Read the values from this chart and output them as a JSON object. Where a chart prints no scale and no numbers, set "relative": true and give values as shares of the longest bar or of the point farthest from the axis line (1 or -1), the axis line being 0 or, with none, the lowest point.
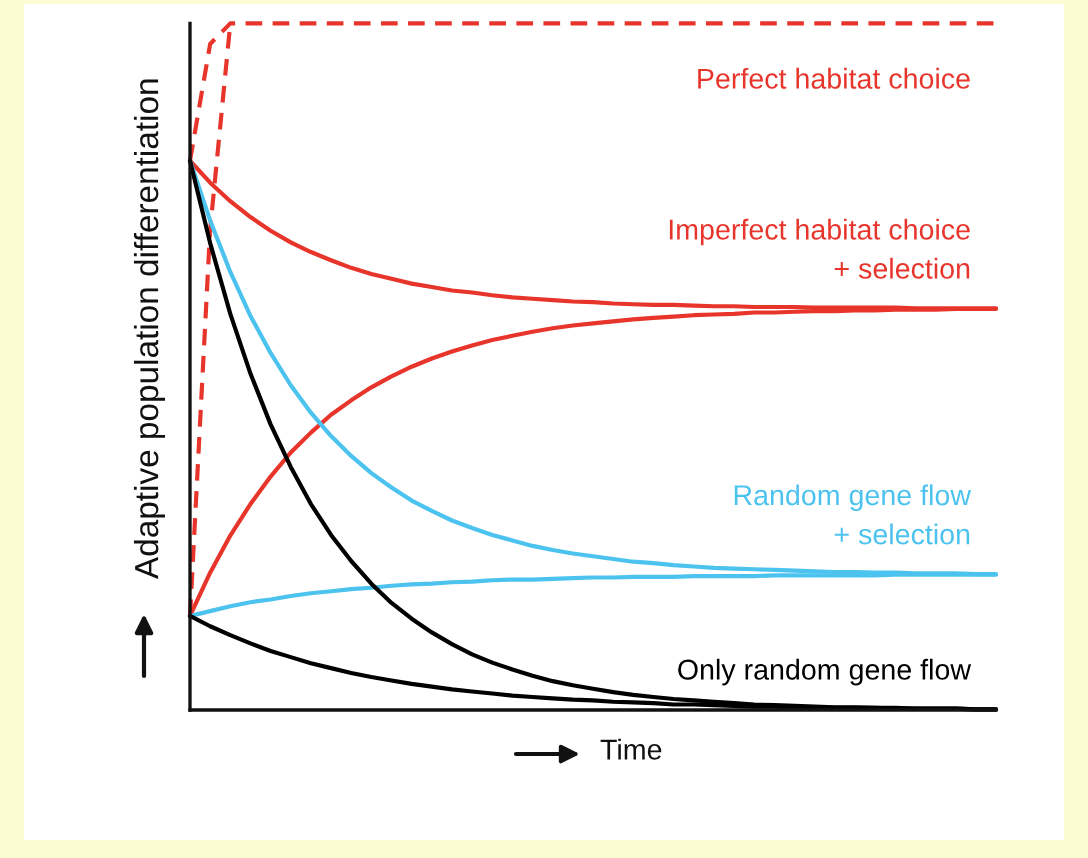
{
  "chart_data": {
    "type": "line",
    "relative": true,
    "xlabel": "Time",
    "ylabel": "Adaptive population differentiation",
    "categories": [
      null,
      null,
      null,
      null,
      null,
      null,
      null,
      null,
      null,
      null,
      null,
      null,
      null,
      null,
      null,
      null,
      null,
      null,
      null,
      null,
      null,
      null,
      null,
      null,
      null,
      null,
      null,
      null,
      null,
      null,
      null,
      null,
      null,
      null,
      null,
      null,
      null,
      null,
      null,
      null,
      null
    ],
    "series": [
      {
        "name": "Perfect habitat choice",
        "color": "#e8352b",
        "line_style": "dashed",
        "values": [
          0.8,
          0.97,
          1.0,
          1.0,
          1.0,
          1.0,
          1.0,
          1.0,
          1.0,
          1.0,
          1.0,
          1.0,
          1.0,
          1.0,
          1.0,
          1.0,
          1.0,
          1.0,
          1.0,
          1.0,
          1.0,
          1.0,
          1.0,
          1.0,
          1.0,
          1.0,
          1.0,
          1.0,
          1.0,
          1.0,
          1.0,
          1.0,
          1.0,
          1.0,
          1.0,
          1.0,
          1.0,
          1.0,
          1.0,
          1.0,
          1.0
        ]
      },
      {
        "color": "#e8352b",
        "line_style": "dashed",
        "values": [
          0.137,
          0.7,
          1.0,
          null,
          null,
          null,
          null,
          null,
          null,
          null,
          null,
          null,
          null,
          null,
          null,
          null,
          null,
          null,
          null,
          null,
          null,
          null,
          null,
          null,
          null,
          null,
          null,
          null,
          null,
          null,
          null,
          null,
          null,
          null,
          null,
          null,
          null,
          null,
          null,
          null,
          null
        ]
      },
      {
        "name": "Imperfect habitat choice\n+ selection",
        "color": "#e8352b",
        "line_style": "solid",
        "values": [
          0.8,
          0.768,
          0.741,
          0.718,
          0.698,
          0.681,
          0.667,
          0.655,
          0.644,
          0.635,
          0.628,
          0.621,
          0.616,
          0.611,
          0.608,
          0.604,
          0.601,
          0.599,
          0.597,
          0.595,
          0.594,
          0.592,
          0.591,
          0.59,
          0.59,
          0.589,
          0.588,
          0.588,
          0.587,
          0.587,
          0.587,
          0.586,
          0.586,
          0.586,
          0.586,
          0.586,
          0.585,
          0.585,
          0.585,
          0.585,
          0.585
        ]
      },
      {
        "color": "#e8352b",
        "line_style": "solid",
        "values": [
          0.137,
          0.2,
          0.254,
          0.3,
          0.34,
          0.375,
          0.404,
          0.43,
          0.451,
          0.47,
          0.486,
          0.5,
          0.512,
          0.522,
          0.531,
          0.539,
          0.545,
          0.551,
          0.556,
          0.56,
          0.563,
          0.566,
          0.569,
          0.571,
          0.573,
          0.575,
          0.576,
          0.577,
          0.579,
          0.579,
          0.58,
          0.581,
          0.581,
          0.582,
          0.582,
          0.583,
          0.583,
          0.583,
          0.584,
          0.584,
          0.584
        ]
      },
      {
        "name": "Random gene flow\n+ selection",
        "color": "#4cc3ef",
        "line_style": "solid",
        "values": [
          0.8,
          0.713,
          0.638,
          0.574,
          0.52,
          0.473,
          0.433,
          0.399,
          0.37,
          0.345,
          0.324,
          0.305,
          0.29,
          0.276,
          0.265,
          0.255,
          0.247,
          0.239,
          0.233,
          0.228,
          0.224,
          0.22,
          0.216,
          0.214,
          0.211,
          0.209,
          0.207,
          0.206,
          0.205,
          0.204,
          0.203,
          0.202,
          0.201,
          0.201,
          0.2,
          0.2,
          0.199,
          0.199,
          0.199,
          0.198,
          0.198
        ]
      },
      {
        "color": "#4cc3ef",
        "line_style": "solid",
        "values": [
          0.137,
          0.144,
          0.151,
          0.157,
          0.161,
          0.166,
          0.17,
          0.173,
          0.176,
          0.178,
          0.181,
          0.183,
          0.184,
          0.186,
          0.187,
          0.189,
          0.19,
          0.19,
          0.191,
          0.192,
          0.193,
          0.193,
          0.194,
          0.194,
          0.194,
          0.195,
          0.195,
          0.195,
          0.195,
          0.196,
          0.196,
          0.196,
          0.196,
          0.196,
          0.196,
          0.197,
          0.197,
          0.197,
          0.197,
          0.197,
          0.197
        ]
      },
      {
        "name": "Only random gene flow",
        "color": "#000000",
        "line_style": "solid",
        "values": [
          0.8,
          0.68,
          0.577,
          0.49,
          0.416,
          0.354,
          0.3,
          0.255,
          0.217,
          0.184,
          0.156,
          0.133,
          0.113,
          0.096,
          0.081,
          0.069,
          0.059,
          0.05,
          0.042,
          0.036,
          0.031,
          0.026,
          0.022,
          0.019,
          0.016,
          0.014,
          0.012,
          0.01,
          0.008,
          0.007,
          0.006,
          0.005,
          0.004,
          0.004,
          0.003,
          0.003,
          0.002,
          0.002,
          0.002,
          0.001,
          0.001
        ]
      },
      {
        "color": "#000000",
        "line_style": "solid",
        "values": [
          0.137,
          0.122,
          0.109,
          0.097,
          0.086,
          0.077,
          0.068,
          0.061,
          0.054,
          0.048,
          0.043,
          0.038,
          0.034,
          0.03,
          0.027,
          0.024,
          0.021,
          0.019,
          0.017,
          0.015,
          0.014,
          0.012,
          0.011,
          0.01,
          0.008,
          0.008,
          0.007,
          0.006,
          0.005,
          0.005,
          0.004,
          0.004,
          0.003,
          0.003,
          0.003,
          0.002,
          0.002,
          0.002,
          0.002,
          0.001,
          0.001
        ]
      }
    ]
  }
}
